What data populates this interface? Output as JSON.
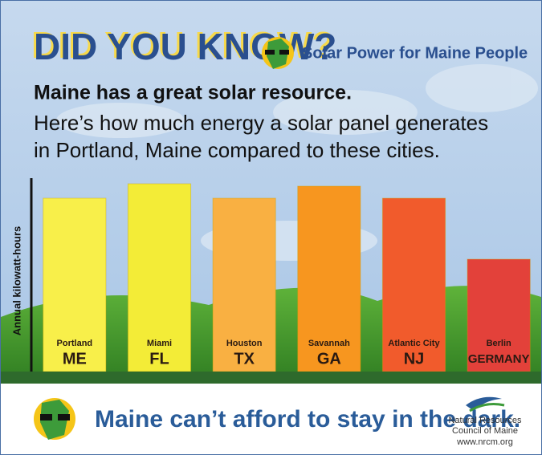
{
  "header": {
    "headline": "DID YOU KNOW?",
    "tagline": "Solar Power for Maine People"
  },
  "chart_data": {
    "type": "bar",
    "title": "Maine has a great solar resource.",
    "subtitle": [
      "Here’s how much energy a solar panel generates",
      "in Portland, Maine compared to these cities."
    ],
    "y_label": "Annual kilowatt-hours",
    "categories": [
      "Portland",
      "Miami",
      "Houston",
      "Savannah",
      "Atlantic City",
      "Berlin"
    ],
    "subcategories": [
      "ME",
      "FL",
      "TX",
      "GA",
      "NJ",
      "GERMANY"
    ],
    "values": [
      216,
      234,
      216,
      231,
      216,
      140
    ],
    "colors": [
      "#f8ef4a",
      "#f3ec37",
      "#f9b042",
      "#f7961f",
      "#f15b2c",
      "#e3413a"
    ],
    "ylim": [
      0,
      241
    ]
  },
  "footer": {
    "slogan": "Maine can’t afford to stay in the dark.",
    "org": [
      "Natural Resources",
      "Council of Maine"
    ],
    "url": "www.nrcm.org"
  }
}
